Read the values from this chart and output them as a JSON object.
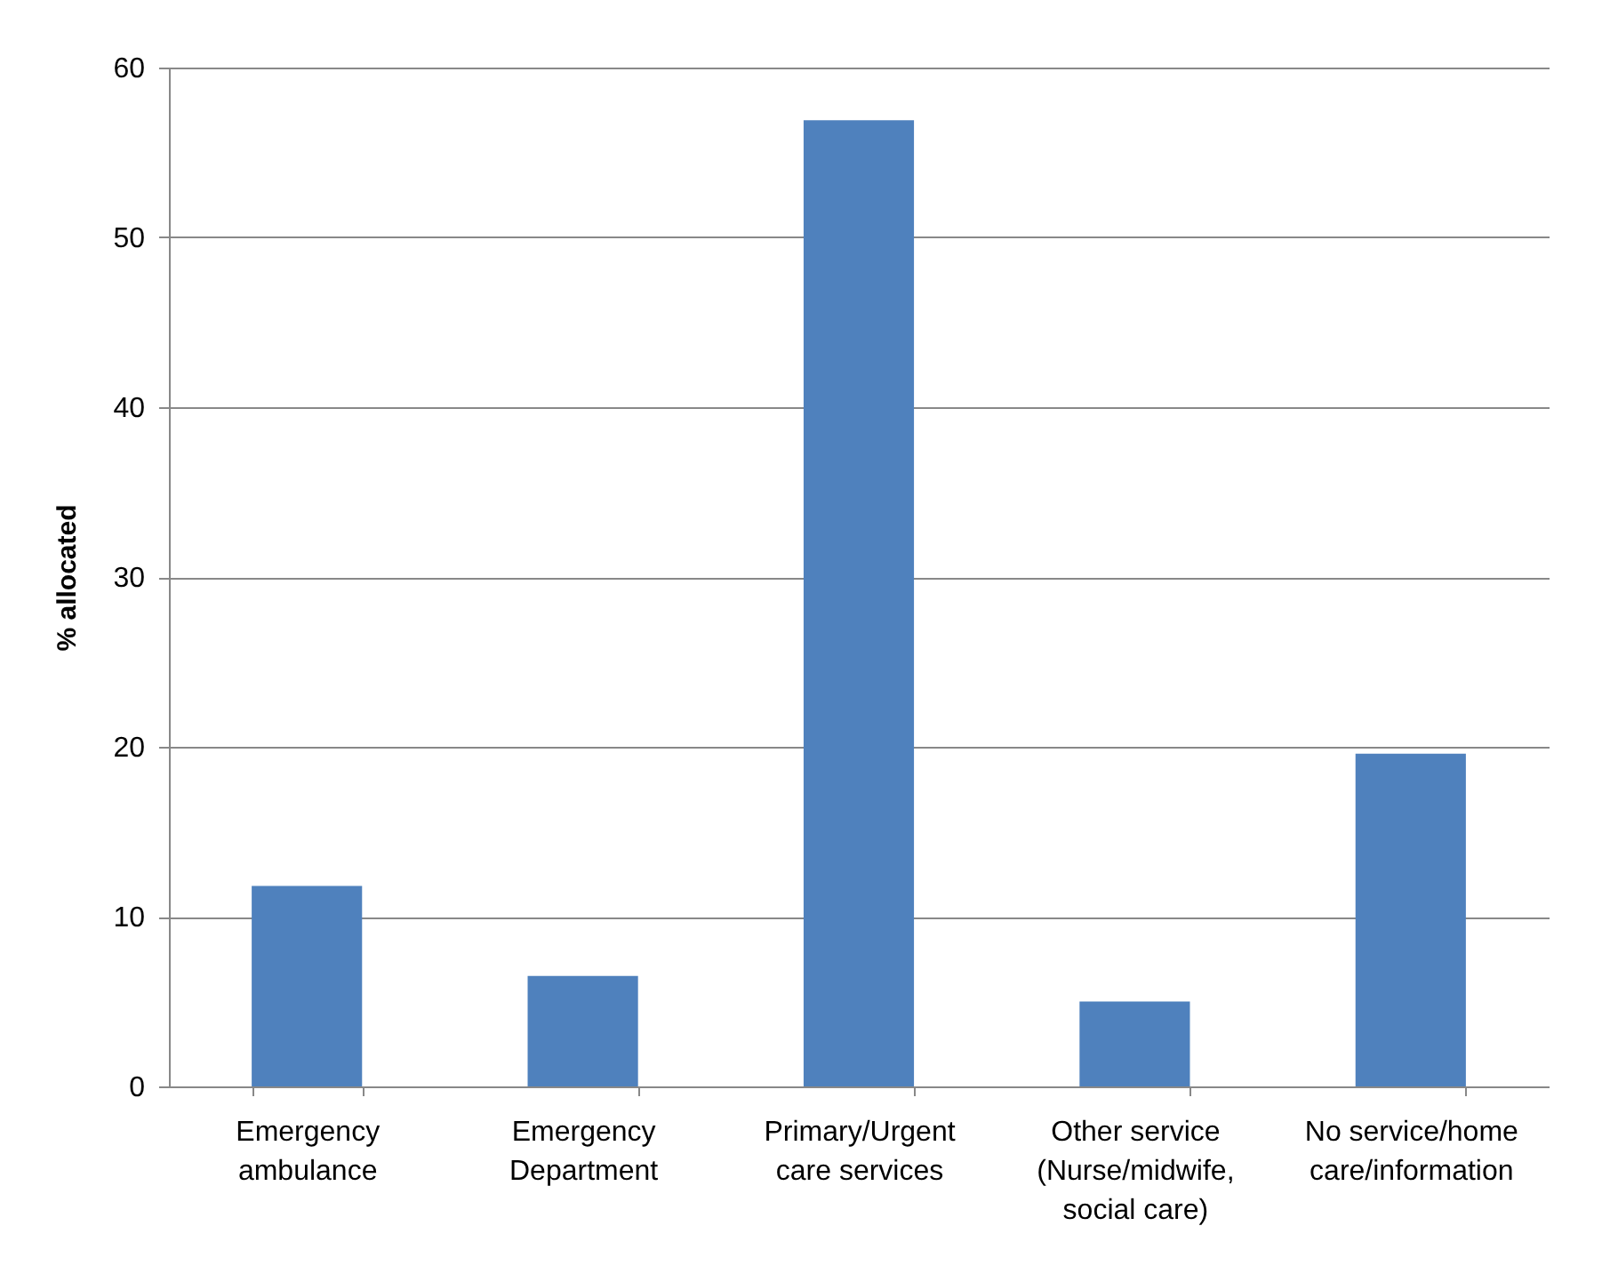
{
  "chart_data": {
    "type": "bar",
    "ylabel": "% allocated",
    "categories": [
      "Emergency ambulance",
      "Emergency Department",
      "Primary/Urgent care services",
      "Other service (Nurse/midwife, social care)",
      "No service/home care/information"
    ],
    "values": [
      11.8,
      6.5,
      56.9,
      5.0,
      19.6
    ],
    "color": "#4f81bd",
    "ylim": [
      0,
      60
    ],
    "yticks": [
      0,
      10,
      20,
      30,
      40,
      50,
      60
    ],
    "grid": "y"
  }
}
